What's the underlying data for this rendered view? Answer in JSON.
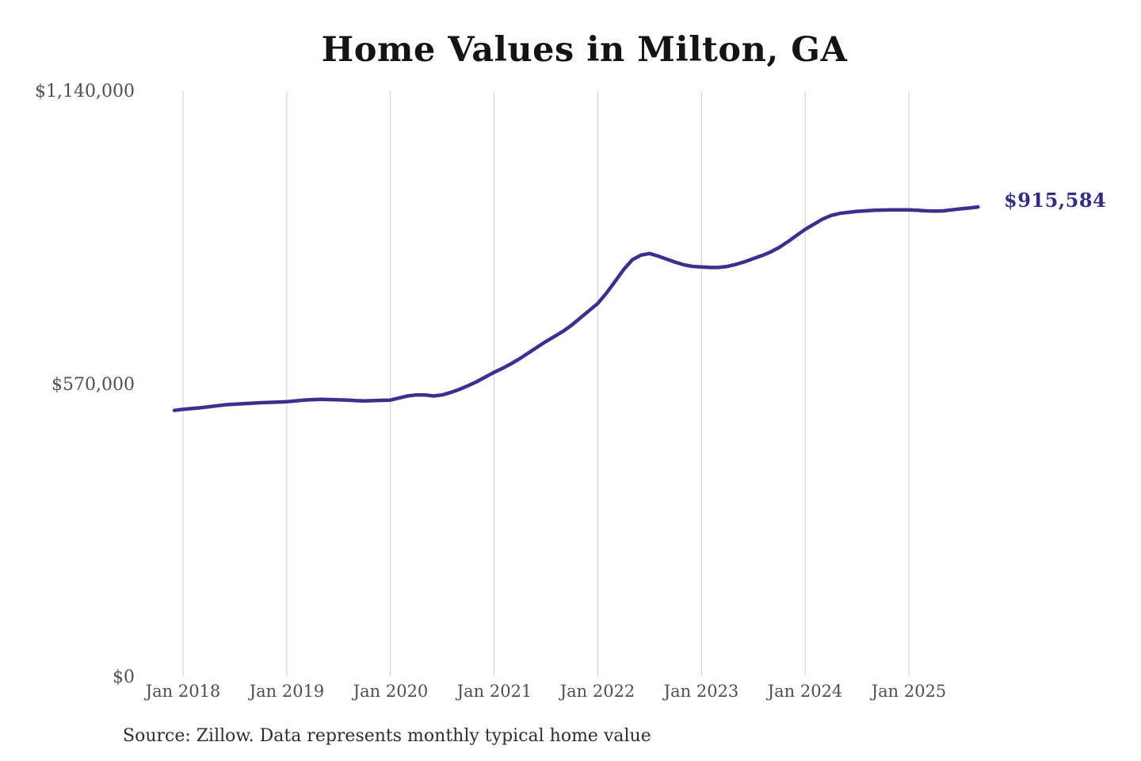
{
  "title": "Home Values in Milton, GA",
  "source_note": "Source: Zillow. Data represents monthly typical home value",
  "annotation": {
    "final_value_label": "$915,584"
  },
  "colors": {
    "line": "#39318e",
    "final_value_label": "#332d85",
    "gridline": "#cdcdcd",
    "axis_text": "#4f4f4f",
    "title_text": "#141414",
    "source_text": "#2e2e2e",
    "background": "#ffffff"
  },
  "chart_data": {
    "type": "line",
    "title": "Home Values in Milton, GA",
    "xlabel": "",
    "ylabel": "",
    "x_tick_labels": [
      "Jan 2018",
      "Jan 2019",
      "Jan 2020",
      "Jan 2021",
      "Jan 2022",
      "Jan 2023",
      "Jan 2024",
      "Jan 2025"
    ],
    "y_tick_labels": [
      "$0",
      "$570,000",
      "$1,140,000"
    ],
    "y_tick_values": [
      0,
      570000,
      1140000
    ],
    "ylim": [
      0,
      1140000
    ],
    "grid": "vertical gridlines at each January tick only",
    "legend_position": "none",
    "line_color": "#39318e",
    "final_value": 915584,
    "final_value_label": "$915,584",
    "series": [
      {
        "name": "Monthly typical home value",
        "interval": "monthly",
        "start_month": "2017-12",
        "end_month": "2025-09",
        "values": [
          520000,
          522000,
          523500,
          525000,
          527000,
          529000,
          531000,
          532000,
          533000,
          534000,
          535000,
          535500,
          536000,
          537000,
          538500,
          540000,
          541000,
          541500,
          541000,
          540500,
          540000,
          539000,
          538500,
          539000,
          539500,
          540000,
          544000,
          548000,
          550000,
          550000,
          548000,
          550000,
          555000,
          561000,
          568000,
          576000,
          585000,
          594000,
          602000,
          611000,
          621000,
          632000,
          643000,
          654000,
          664000,
          674000,
          686000,
          700000,
          714000,
          728000,
          748000,
          771000,
          794000,
          813000,
          822000,
          825000,
          820000,
          814000,
          808000,
          803000,
          800000,
          799000,
          798000,
          798000,
          800000,
          804000,
          809000,
          815000,
          821000,
          828000,
          837000,
          848000,
          860000,
          872000,
          882000,
          892000,
          899000,
          903000,
          905000,
          907000,
          908000,
          909000,
          909500,
          910000,
          910000,
          910000,
          909000,
          908000,
          907500,
          908000,
          910000,
          912000,
          913500,
          915584
        ]
      }
    ]
  }
}
